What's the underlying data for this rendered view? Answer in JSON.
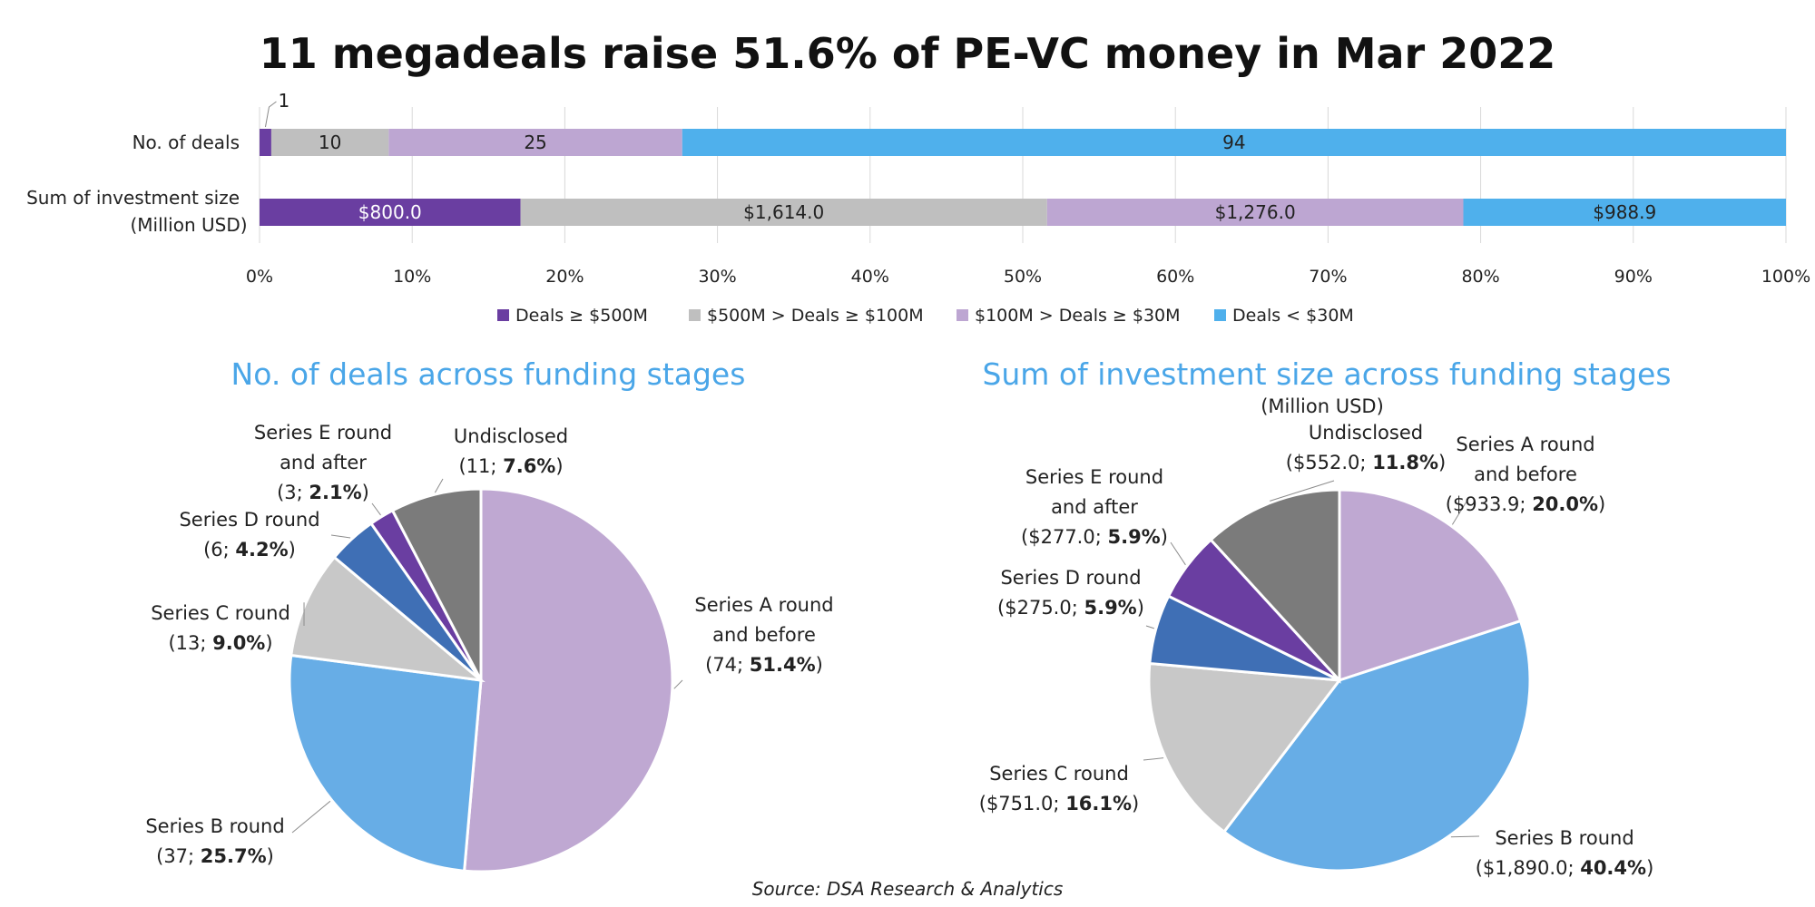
{
  "title": "11 megadeals raise 51.6% of PE-VC money in Mar 2022",
  "source": "Source: DSA Research & Analytics",
  "colors": {
    "purple": "#6a3ea1",
    "gray": "#bfbfbf",
    "lavender": "#bda6d2",
    "blue": "#4fb0ec",
    "pie_lavender": "#bfa8d2",
    "pie_blue": "#67ade6",
    "pie_lightgray": "#c8c8c8",
    "pie_darkblue": "#3f6fb5",
    "pie_purple": "#6a3ea1",
    "pie_darkgray": "#7b7b7b",
    "title_blue": "#4aa6e8"
  },
  "chart_data": [
    {
      "type": "bar",
      "orientation": "horizontal",
      "stacked": "percent",
      "categories": [
        "No. of deals",
        "Sum of investment size|(Million USD)"
      ],
      "series": [
        {
          "name": "Deals ≥ $500M",
          "values": [
            1,
            800.0
          ],
          "labels": [
            "1",
            "$800.0"
          ],
          "color": "#6a3ea1"
        },
        {
          "name": "$500M > Deals ≥ $100M",
          "values": [
            10,
            1614.0
          ],
          "labels": [
            "10",
            "$1,614.0"
          ],
          "color": "#bfbfbf"
        },
        {
          "name": "$100M > Deals ≥ $30M",
          "values": [
            25,
            1276.0
          ],
          "labels": [
            "25",
            "$1,276.0"
          ],
          "color": "#bda6d2"
        },
        {
          "name": "Deals < $30M",
          "values": [
            94,
            988.9
          ],
          "labels": [
            "94",
            "$988.9"
          ],
          "color": "#4fb0ec"
        }
      ],
      "xlim": [
        0,
        100
      ],
      "xticks": [
        "0%",
        "10%",
        "20%",
        "30%",
        "40%",
        "50%",
        "60%",
        "70%",
        "80%",
        "90%",
        "100%"
      ],
      "grid": true,
      "legend": "bottom"
    },
    {
      "type": "pie",
      "title": "No. of deals across funding stages",
      "slices": [
        {
          "name": "Series A round|and before",
          "value": 74,
          "label": "(74; ",
          "pct": "51.4%",
          "color": "#bfa8d2"
        },
        {
          "name": "Series B round",
          "value": 37,
          "label": "(37; ",
          "pct": "25.7%",
          "color": "#67ade6"
        },
        {
          "name": "Series C round",
          "value": 13,
          "label": "(13; ",
          "pct": "9.0%",
          "color": "#c8c8c8"
        },
        {
          "name": "Series D round",
          "value": 6,
          "label": "(6; ",
          "pct": "4.2%",
          "color": "#3f6fb5"
        },
        {
          "name": "Series E round|and after",
          "value": 3,
          "label": "(3; ",
          "pct": "2.1%",
          "color": "#6a3ea1"
        },
        {
          "name": "Undisclosed",
          "value": 11,
          "label": "(11; ",
          "pct": "7.6%",
          "color": "#7b7b7b"
        }
      ]
    },
    {
      "type": "pie",
      "title": "Sum of investment size across funding stages",
      "subtitle": "(Million USD)",
      "slices": [
        {
          "name": "Series A round|and before",
          "value": 933.9,
          "label": "($933.9; ",
          "pct": "20.0%",
          "color": "#bfa8d2"
        },
        {
          "name": "Series B round",
          "value": 1890.0,
          "label": "($1,890.0; ",
          "pct": "40.4%",
          "color": "#67ade6"
        },
        {
          "name": "Series C round",
          "value": 751.0,
          "label": "($751.0; ",
          "pct": "16.1%",
          "color": "#c8c8c8"
        },
        {
          "name": "Series D round",
          "value": 275.0,
          "label": "($275.0; ",
          "pct": "5.9%",
          "color": "#3f6fb5"
        },
        {
          "name": "Series E round|and after",
          "value": 277.0,
          "label": "($277.0; ",
          "pct": "5.9%",
          "color": "#6a3ea1"
        },
        {
          "name": "Undisclosed",
          "value": 552.0,
          "label": "($552.0; ",
          "pct": "11.8%",
          "color": "#7b7b7b"
        }
      ]
    }
  ]
}
